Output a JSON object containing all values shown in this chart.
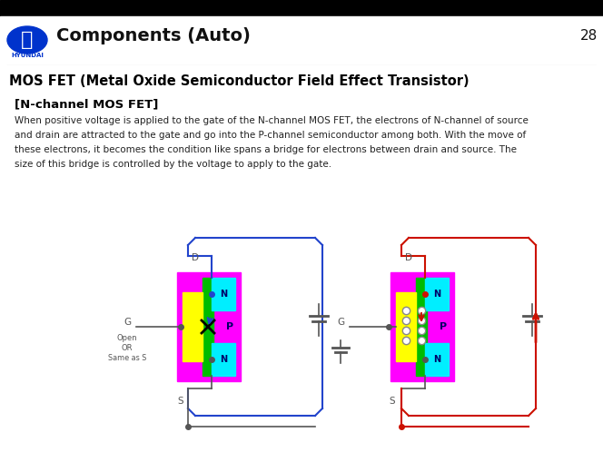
{
  "title": "Components (Auto)",
  "page_num": "28",
  "slide_title": "MOS FET (Metal Oxide Semiconductor Field Effect Transistor)",
  "section_label": "[N-channel MOS FET]",
  "body_text": "When positive voltage is applied to the gate of the N-channel MOS FET, the electrons of N-channel of source\nand drain are attracted to the gate and go into the P-channel semiconductor among both. With the move of\nthese electrons, it becomes the condition like spans a bridge for electrons between drain and source. The\nsize of this bridge is controlled by the voltage to apply to the gate.",
  "header_bg": "#000000",
  "white": "#ffffff",
  "slide_bg": "#ffffff",
  "hyundai_blue": "#0033cc",
  "dark_text": "#111111",
  "gray_text": "#555555",
  "magenta": "#ff00ff",
  "cyan": "#00eeff",
  "yellow": "#ffff00",
  "green": "#00bb00",
  "red": "#dd0000",
  "blue_wire": "#2244cc",
  "red_wire": "#cc1100",
  "dark_blue": "#000066",
  "electron_fill": "#ffffff",
  "electron_ring": "#888888",
  "arrow_blue": "#2244cc",
  "arrow_red": "#cc1100"
}
